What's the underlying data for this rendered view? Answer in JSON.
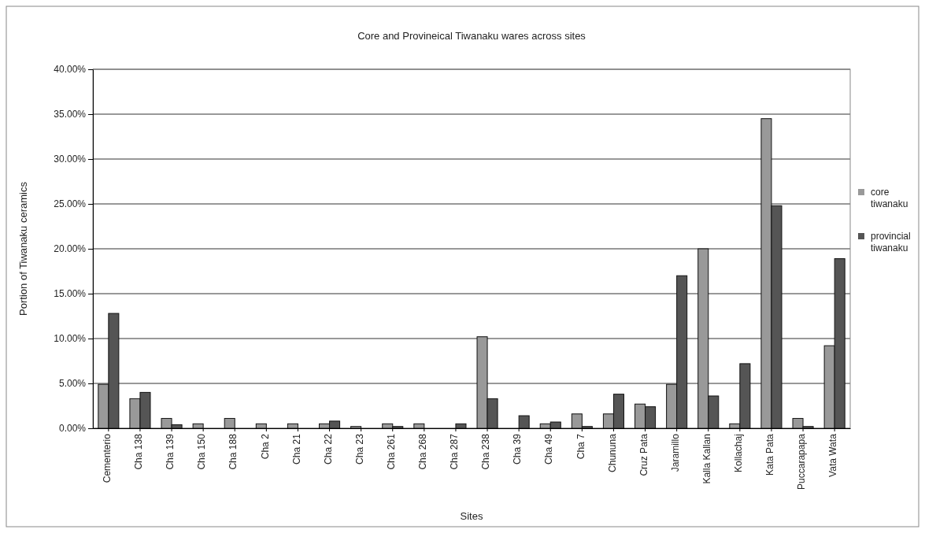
{
  "chart_data": {
    "type": "bar",
    "title": "Core and Provineical Tiwanaku wares across sites",
    "xlabel": "Sites",
    "ylabel": "Portion of Tiwanaku ceramics",
    "categories": [
      "Cementerio",
      "Cha 138",
      "Cha 139",
      "Cha 150",
      "Cha 188",
      "Cha 2",
      "Cha 21",
      "Cha 22",
      "Cha 23",
      "Cha 261",
      "Cha 268",
      "Cha  287",
      "Cha 238",
      "Cha 39",
      "Cha 49",
      "Cha 7",
      "Chununa",
      "Cruz Pata",
      "Jaramillo",
      "Kalla Kallan",
      "Kollachaj",
      "Kata Pata",
      "Puccarapapa",
      "Vata Wata"
    ],
    "series": [
      {
        "name": "core tiwanaku",
        "color": "#999999",
        "values": [
          4.9,
          3.3,
          1.1,
          0.5,
          1.1,
          0.5,
          0.5,
          0.5,
          0.2,
          0.5,
          0.5,
          0,
          10.2,
          0,
          0.5,
          1.6,
          1.6,
          2.7,
          4.9,
          20.0,
          0.5,
          34.5,
          1.1,
          9.2
        ]
      },
      {
        "name": "provincial tiwanaku",
        "color": "#555555",
        "values": [
          12.8,
          4.0,
          0.4,
          0,
          0,
          0,
          0,
          0.8,
          0,
          0.2,
          0,
          0.5,
          3.3,
          1.4,
          0.7,
          0.2,
          3.8,
          2.4,
          17.0,
          3.6,
          7.2,
          24.8,
          0.2,
          18.9
        ]
      }
    ],
    "ylim": [
      0,
      40
    ],
    "yticks": [
      {
        "value": 0,
        "label": "0.00%"
      },
      {
        "value": 5,
        "label": "5.00%"
      },
      {
        "value": 10,
        "label": "10.00%"
      },
      {
        "value": 15,
        "label": "15.00%"
      },
      {
        "value": 20,
        "label": "20.00%"
      },
      {
        "value": 25,
        "label": "25.00%"
      },
      {
        "value": 30,
        "label": "30.00%"
      },
      {
        "value": 35,
        "label": "35.00%"
      },
      {
        "value": 40,
        "label": "40.00%"
      }
    ],
    "grid": "y",
    "legend": "right"
  }
}
